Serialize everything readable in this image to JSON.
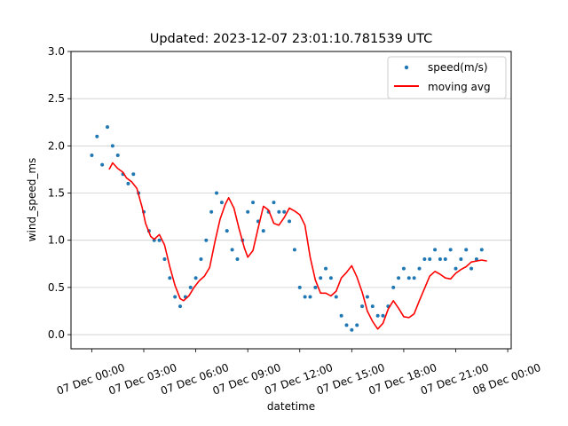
{
  "chart_data": {
    "type": "scatter",
    "title": "Updated: 2023-12-07 23:01:10.781539 UTC",
    "xlabel": "datetime",
    "ylabel": "wind_speed_ms",
    "x_unit": "hours since 07 Dec 00:00",
    "xlim": [
      -1.2,
      24.2
    ],
    "ylim": [
      -0.15,
      3.0
    ],
    "x_ticks": [
      0,
      3,
      6,
      9,
      12,
      15,
      18,
      21,
      24
    ],
    "x_tick_labels": [
      "07 Dec 00:00",
      "07 Dec 03:00",
      "07 Dec 06:00",
      "07 Dec 09:00",
      "07 Dec 12:00",
      "07 Dec 15:00",
      "07 Dec 18:00",
      "07 Dec 21:00",
      "08 Dec 00:00"
    ],
    "y_ticks": [
      0.0,
      0.5,
      1.0,
      1.5,
      2.0,
      2.5,
      3.0
    ],
    "y_tick_labels": [
      "0.0",
      "0.5",
      "1.0",
      "1.5",
      "2.0",
      "2.5",
      "3.0"
    ],
    "grid": "y",
    "legend": {
      "placement": "top-right",
      "entries": [
        "speed(m/s)",
        "moving avg"
      ]
    },
    "series": [
      {
        "name": "speed(m/s)",
        "kind": "scatter",
        "color": "#1f77b4",
        "x": [
          0.0,
          0.3,
          0.6,
          0.9,
          1.2,
          1.5,
          1.8,
          2.1,
          2.4,
          2.7,
          3.0,
          3.3,
          3.6,
          3.9,
          4.2,
          4.5,
          4.8,
          5.1,
          5.4,
          5.7,
          6.0,
          6.3,
          6.6,
          6.9,
          7.2,
          7.5,
          7.8,
          8.1,
          8.4,
          8.7,
          9.0,
          9.3,
          9.6,
          9.9,
          10.2,
          10.5,
          10.8,
          11.1,
          11.4,
          11.7,
          12.0,
          12.3,
          12.6,
          12.9,
          13.2,
          13.5,
          13.8,
          14.1,
          14.4,
          14.7,
          15.0,
          15.3,
          15.6,
          15.9,
          16.2,
          16.5,
          16.8,
          17.1,
          17.4,
          17.7,
          18.0,
          18.3,
          18.6,
          18.9,
          19.2,
          19.5,
          19.8,
          20.1,
          20.4,
          20.7,
          21.0,
          21.3,
          21.6,
          21.9,
          22.2,
          22.5
        ],
        "y": [
          1.9,
          2.1,
          1.8,
          2.2,
          2.0,
          1.9,
          1.7,
          1.6,
          1.7,
          1.5,
          1.3,
          1.1,
          1.0,
          1.0,
          0.8,
          0.6,
          0.4,
          0.3,
          0.4,
          0.5,
          0.6,
          0.8,
          1.0,
          1.3,
          1.5,
          1.4,
          1.1,
          0.9,
          0.8,
          1.0,
          1.3,
          1.4,
          1.2,
          1.1,
          1.3,
          1.4,
          1.3,
          1.3,
          1.2,
          0.9,
          0.5,
          0.4,
          0.4,
          0.5,
          0.6,
          0.7,
          0.6,
          0.4,
          0.2,
          0.1,
          0.05,
          0.1,
          0.3,
          0.4,
          0.3,
          0.2,
          0.2,
          0.3,
          0.5,
          0.6,
          0.7,
          0.6,
          0.6,
          0.7,
          0.8,
          0.8,
          0.9,
          0.8,
          0.8,
          0.9,
          0.7,
          0.8,
          0.9,
          0.7,
          0.8,
          0.9
        ]
      },
      {
        "name": "moving avg",
        "kind": "line",
        "color": "#ff0000",
        "x": [
          1.0,
          1.2,
          1.5,
          1.8,
          2.0,
          2.3,
          2.6,
          2.9,
          3.1,
          3.4,
          3.6,
          3.9,
          4.2,
          4.5,
          4.8,
          5.1,
          5.3,
          5.6,
          5.9,
          6.2,
          6.5,
          6.8,
          7.1,
          7.4,
          7.7,
          7.9,
          8.2,
          8.5,
          8.8,
          9.0,
          9.3,
          9.6,
          9.9,
          10.2,
          10.5,
          10.8,
          11.1,
          11.4,
          11.7,
          12.0,
          12.3,
          12.6,
          12.9,
          13.2,
          13.5,
          13.8,
          14.1,
          14.4,
          14.7,
          15.0,
          15.3,
          15.6,
          15.9,
          16.2,
          16.5,
          16.8,
          17.1,
          17.4,
          17.7,
          18.0,
          18.3,
          18.6,
          18.9,
          19.2,
          19.5,
          19.8,
          20.1,
          20.4,
          20.7,
          21.0,
          21.3,
          21.6,
          21.9,
          22.2,
          22.5,
          22.8
        ],
        "y": [
          1.75,
          1.82,
          1.76,
          1.72,
          1.66,
          1.62,
          1.55,
          1.35,
          1.18,
          1.04,
          1.01,
          1.06,
          0.95,
          0.72,
          0.52,
          0.38,
          0.36,
          0.41,
          0.5,
          0.57,
          0.62,
          0.71,
          0.98,
          1.22,
          1.38,
          1.45,
          1.34,
          1.12,
          0.92,
          0.82,
          0.89,
          1.13,
          1.36,
          1.32,
          1.18,
          1.16,
          1.24,
          1.34,
          1.31,
          1.27,
          1.16,
          0.82,
          0.58,
          0.44,
          0.44,
          0.41,
          0.46,
          0.6,
          0.66,
          0.73,
          0.61,
          0.45,
          0.25,
          0.14,
          0.06,
          0.12,
          0.27,
          0.36,
          0.28,
          0.19,
          0.18,
          0.22,
          0.36,
          0.49,
          0.62,
          0.67,
          0.64,
          0.6,
          0.59,
          0.65,
          0.69,
          0.72,
          0.77,
          0.78,
          0.79,
          0.78
        ]
      }
    ]
  }
}
